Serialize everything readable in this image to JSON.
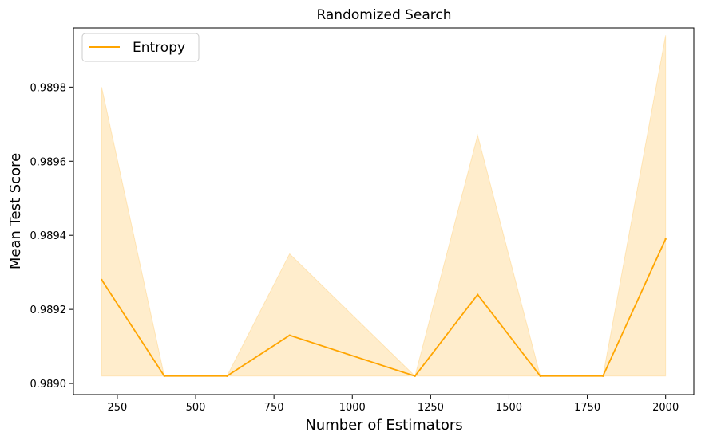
{
  "chart_data": {
    "type": "line",
    "title": "Randomized Search",
    "xlabel": "Number of Estimators",
    "ylabel": "Mean Test Score",
    "xlim": [
      110,
      2090
    ],
    "ylim": [
      0.98897,
      0.98996
    ],
    "x": [
      200,
      400,
      600,
      800,
      1200,
      1400,
      1600,
      1800,
      2000
    ],
    "xticks": [
      250,
      500,
      750,
      1000,
      1250,
      1500,
      1750,
      2000
    ],
    "yticks": [
      0.989,
      0.9892,
      0.9894,
      0.9896,
      0.9898
    ],
    "ytick_labels": [
      "0.9890",
      "0.9892",
      "0.9894",
      "0.9896",
      "0.9898"
    ],
    "grid": false,
    "legend_position": "top-left",
    "series": [
      {
        "name": "Entropy",
        "color": "#ffa500",
        "values": [
          0.98928,
          0.98902,
          0.98902,
          0.98913,
          0.98902,
          0.98924,
          0.98902,
          0.98902,
          0.98939
        ],
        "band_lower": [
          0.98902,
          0.98902,
          0.98902,
          0.98902,
          0.98902,
          0.98902,
          0.98902,
          0.98902,
          0.98902
        ],
        "band_upper": [
          0.9898,
          0.98902,
          0.98902,
          0.98935,
          0.98902,
          0.98967,
          0.98902,
          0.98902,
          0.98994
        ]
      }
    ]
  }
}
